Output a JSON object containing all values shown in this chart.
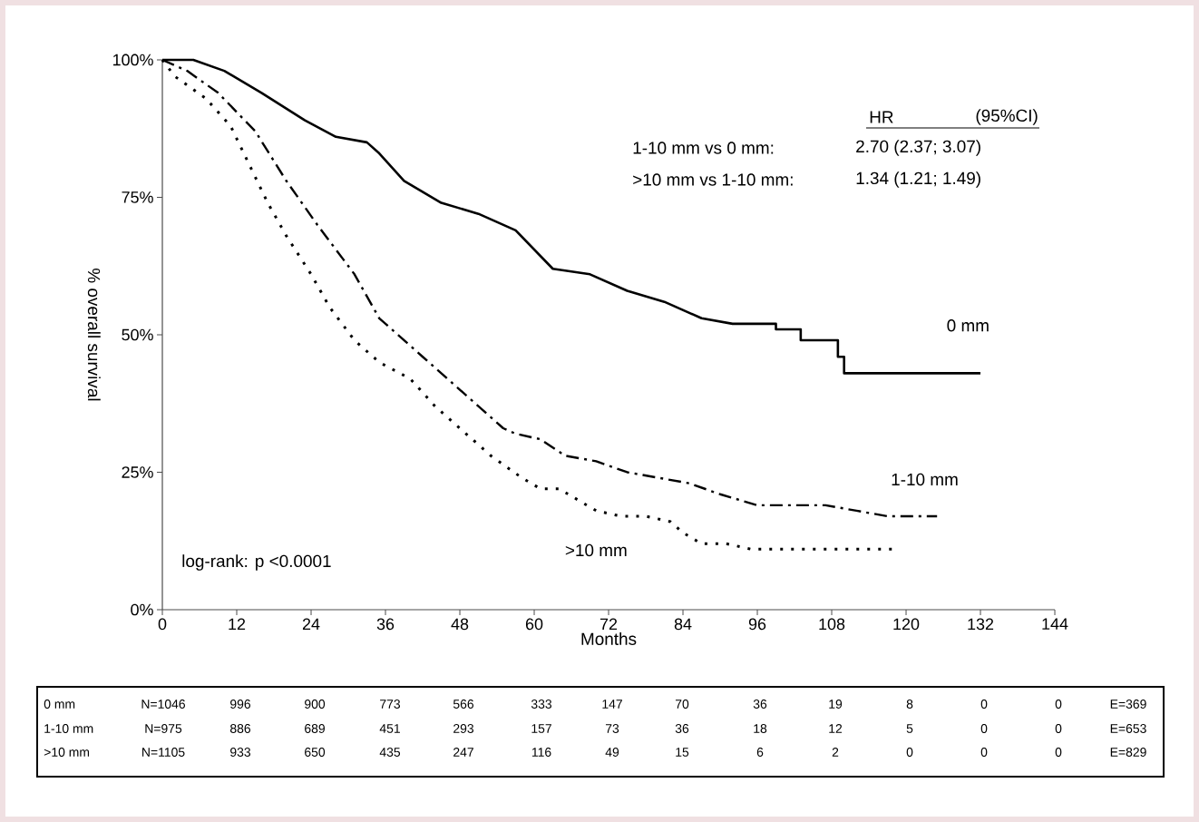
{
  "chart_data": {
    "type": "line",
    "xlabel": "Months",
    "ylabel": "% overall survival",
    "xlim": [
      0,
      144
    ],
    "xticks": [
      0,
      12,
      24,
      36,
      48,
      60,
      72,
      84,
      96,
      108,
      120,
      132,
      144
    ],
    "ylim": [
      0,
      100
    ],
    "yticks": [
      {
        "value": 0,
        "label": "0%"
      },
      {
        "value": 25,
        "label": "25%"
      },
      {
        "value": 50,
        "label": "50%"
      },
      {
        "value": 75,
        "label": "75%"
      },
      {
        "value": 100,
        "label": "100%"
      }
    ],
    "grid": false,
    "legend": false,
    "series": [
      {
        "name": "0 mm",
        "color": "#000000",
        "line_style": "solid",
        "x": [
          0,
          5,
          10,
          16,
          23,
          28,
          33,
          35,
          39,
          45,
          51,
          57,
          63,
          69,
          75,
          81,
          87,
          92,
          99,
          99,
          103,
          103,
          109,
          109,
          110,
          110,
          132
        ],
        "values": [
          100,
          100,
          98,
          94,
          89,
          86,
          85,
          83,
          78,
          74,
          72,
          69,
          62,
          61,
          58,
          56,
          53,
          52,
          52,
          51,
          51,
          49,
          49,
          46,
          46,
          43,
          43
        ]
      },
      {
        "name": "1-10 mm",
        "color": "#000000",
        "line_style": "dashed",
        "x": [
          0,
          4,
          9,
          15,
          20,
          25,
          31,
          35,
          42,
          48,
          55,
          57,
          61,
          65,
          70,
          75,
          80,
          85,
          90,
          96,
          107,
          112,
          117,
          125
        ],
        "values": [
          100,
          98,
          94,
          87,
          78,
          70,
          61,
          53,
          46,
          40,
          33,
          32,
          31,
          28,
          27,
          25,
          24,
          23,
          21,
          19,
          19,
          18,
          17,
          17
        ]
      },
      {
        "name": ">10 mm",
        "color": "#000000",
        "line_style": "dotted",
        "x": [
          0,
          2,
          7,
          11,
          14,
          17,
          20,
          24,
          27,
          31,
          35,
          40,
          44,
          53,
          58,
          61,
          64,
          67,
          70,
          74,
          78,
          82,
          84,
          87,
          91,
          95,
          118
        ],
        "values": [
          100,
          97,
          93,
          88,
          81,
          74,
          68,
          61,
          55,
          49,
          45,
          42,
          37,
          28,
          24,
          22,
          22,
          20,
          18,
          17,
          17,
          16,
          14,
          12,
          12,
          11,
          11
        ]
      }
    ],
    "annotations": [
      "HR",
      "(95%CI)",
      "1-10 mm vs 0 mm:",
      "2.70 (2.37; 3.07)",
      ">10 mm vs 1-10 mm:",
      "1.34 (1.21; 1.49)",
      "log-rank: p <0.0001",
      "0 mm",
      "N=1046",
      "996",
      "900",
      "773",
      "566",
      "333",
      "147",
      "70",
      "36",
      "19",
      "8",
      "0",
      "0",
      "E=369",
      "1-10 mm",
      "N=975",
      "886",
      "689",
      "451",
      "293",
      "157",
      "73",
      "36",
      "18",
      "12",
      "5",
      "0",
      "0",
      "E=653",
      ">10 mm",
      "N=1105",
      "933",
      "650",
      "435",
      "247",
      "116",
      "49",
      "15",
      "6",
      "2",
      "0",
      "0",
      "0",
      "E=829"
    ]
  }
}
